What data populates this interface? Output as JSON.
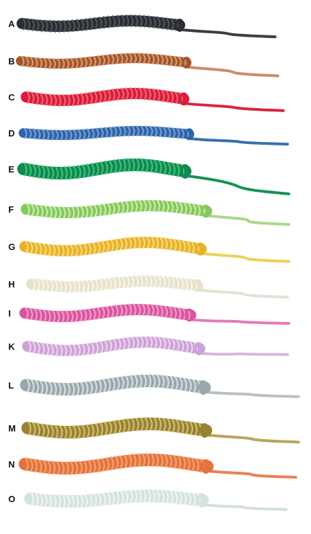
{
  "specimens": [
    {
      "label": "A",
      "coil": "#2a2d33",
      "coil_light": "#55595f",
      "tail": "#3a3d42"
    },
    {
      "label": "B",
      "coil": "#a2552e",
      "coil_light": "#e0a377",
      "tail": "#c98e66"
    },
    {
      "label": "C",
      "coil": "#d91c3a",
      "coil_light": "#f0707e",
      "tail": "#d8263f"
    },
    {
      "label": "D",
      "coil": "#2f63a8",
      "coil_light": "#7ea6d8",
      "tail": "#3a6fb0"
    },
    {
      "label": "E",
      "coil": "#0e8a4e",
      "coil_light": "#4cc486",
      "tail": "#159157"
    },
    {
      "label": "F",
      "coil": "#86c85c",
      "coil_light": "#d3eebd",
      "tail": "#a9d88a"
    },
    {
      "label": "G",
      "coil": "#e9b12a",
      "coil_light": "#f7df85",
      "tail": "#ecd257"
    },
    {
      "label": "H",
      "coil": "#e7e2cb",
      "coil_light": "#fbf8ec",
      "tail": "#e3e1d5"
    },
    {
      "label": "I",
      "coil": "#d9559e",
      "coil_light": "#f3a6cf",
      "tail": "#e07cb5"
    },
    {
      "label": "K",
      "coil": "#cda2d6",
      "coil_light": "#efdcf2",
      "tail": "#d8b6de"
    },
    {
      "label": "L",
      "coil": "#9aa8ac",
      "coil_light": "#dfe6e7",
      "tail": "#b7c2c5"
    },
    {
      "label": "M",
      "coil": "#9a8233",
      "coil_light": "#d6c77b",
      "tail": "#bba558"
    },
    {
      "label": "N",
      "coil": "#e4733c",
      "coil_light": "#f6a97b",
      "tail": "#e98350"
    },
    {
      "label": "O",
      "coil": "#d4e2e0",
      "coil_light": "#f2f7f6",
      "tail": "#d2dfdd"
    }
  ]
}
